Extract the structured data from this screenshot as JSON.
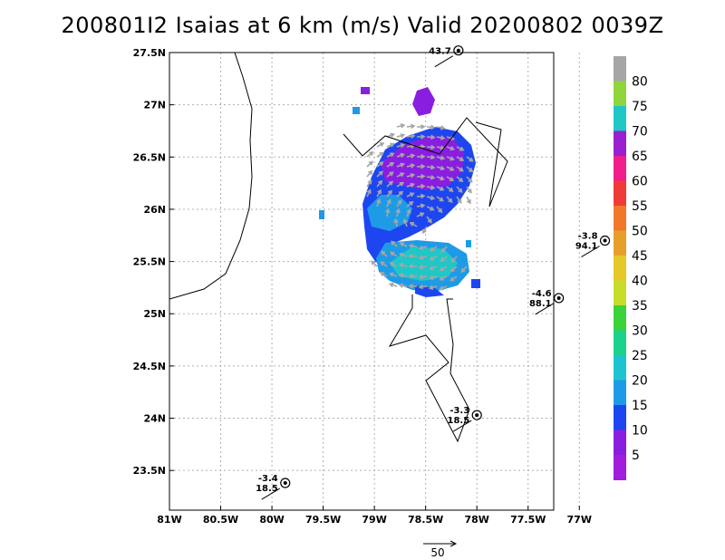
{
  "title": "200801I2 Isaias at 6 km (m/s) Valid 20200802 0039Z",
  "chart_data": {
    "type": "heatmap",
    "title": "200801I2 Isaias at 6 km (m/s) Valid 20200802 0039Z",
    "x_ticks": [
      "81W",
      "80.5W",
      "80W",
      "79.5W",
      "79W",
      "78.5W",
      "78W",
      "77.5W",
      "77W"
    ],
    "y_ticks": [
      "27.5N",
      "27N",
      "26.5N",
      "26N",
      "25.5N",
      "25N",
      "24.5N",
      "24N",
      "23.5N"
    ],
    "xlim": [
      -81,
      -77.25
    ],
    "ylim": [
      23.12,
      27.5
    ],
    "grid": true,
    "colorbar": {
      "labels": [
        "80",
        "75",
        "70",
        "65",
        "60",
        "55",
        "50",
        "45",
        "40",
        "35",
        "30",
        "25",
        "20",
        "15",
        "10",
        "5"
      ],
      "colors": [
        "#a6a6a6",
        "#8fd63c",
        "#1fc7c7",
        "#9a1fd0",
        "#f01e8a",
        "#f03a3a",
        "#f0782a",
        "#e6a02a",
        "#e6c82a",
        "#c8dc2a",
        "#3cd23c",
        "#1ad28c",
        "#1ec3d2",
        "#1e9be6",
        "#1e46f0",
        "#8a1ee0",
        "#a01edc"
      ]
    },
    "stations": [
      {
        "lon": -78.18,
        "lat": 27.52,
        "labels": [
          "43.7"
        ]
      },
      {
        "lon": -76.75,
        "lat": 25.7,
        "labels": [
          "-3.8",
          "94.1"
        ]
      },
      {
        "lon": -77.2,
        "lat": 25.15,
        "labels": [
          "-4.6",
          "88.1"
        ]
      },
      {
        "lon": -78.0,
        "lat": 24.03,
        "labels": [
          "-3.3",
          "18.5"
        ]
      },
      {
        "lon": -79.87,
        "lat": 23.38,
        "labels": [
          "-3.4",
          "18.5"
        ]
      }
    ],
    "scale_vector_label": "50",
    "scale_vector_value": 50
  }
}
